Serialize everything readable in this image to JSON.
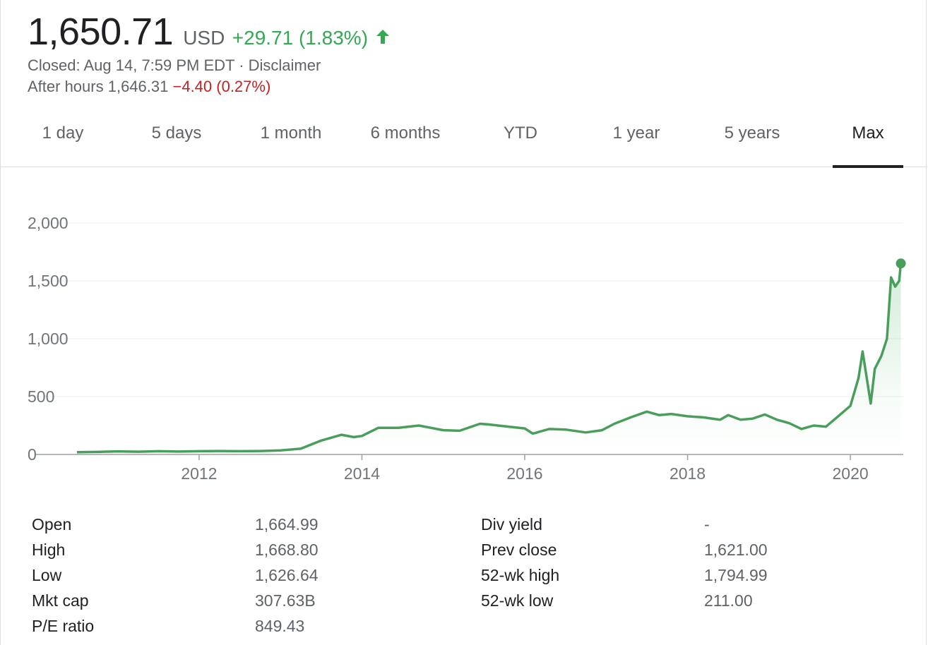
{
  "quote": {
    "price": "1,650.71",
    "currency": "USD",
    "change": "+29.71 (1.83%)",
    "direction": "up",
    "status_prefix": "Closed: Aug 14, 7:59 PM EDT · ",
    "disclaimer_link": "Disclaimer",
    "after_hours_label": "After hours 1,646.31",
    "after_hours_change": "−4.40 (0.27%)"
  },
  "colors": {
    "positive": "#34a853",
    "negative": "#c5221f",
    "line": "#4a9e5c"
  },
  "tabs": [
    {
      "label": "1 day",
      "active": false
    },
    {
      "label": "5 days",
      "active": false
    },
    {
      "label": "1 month",
      "active": false
    },
    {
      "label": "6 months",
      "active": false
    },
    {
      "label": "YTD",
      "active": false
    },
    {
      "label": "1 year",
      "active": false
    },
    {
      "label": "5 years",
      "active": false
    },
    {
      "label": "Max",
      "active": true
    }
  ],
  "chart_data": {
    "type": "line",
    "title": "",
    "xlabel": "",
    "ylabel": "",
    "x_ticks": [
      "2012",
      "2014",
      "2016",
      "2018",
      "2020"
    ],
    "y_ticks": [
      "0",
      "500",
      "1,000",
      "1,500",
      "2,000"
    ],
    "ylim": [
      0,
      2000
    ],
    "xlim": [
      2010.5,
      2020.65
    ],
    "grid": true,
    "fill_under": true,
    "end_marker": true,
    "series": [
      {
        "x": [
          2010.5,
          2010.75,
          2011.0,
          2011.25,
          2011.5,
          2011.75,
          2012.0,
          2012.25,
          2012.5,
          2012.75,
          2013.0,
          2013.25,
          2013.5,
          2013.75,
          2013.9,
          2014.0,
          2014.2,
          2014.45,
          2014.7,
          2014.85,
          2015.0,
          2015.2,
          2015.45,
          2015.55,
          2015.8,
          2016.0,
          2016.1,
          2016.3,
          2016.5,
          2016.75,
          2016.95,
          2017.1,
          2017.3,
          2017.5,
          2017.65,
          2017.8,
          2018.0,
          2018.2,
          2018.4,
          2018.5,
          2018.65,
          2018.8,
          2018.95,
          2019.1,
          2019.25,
          2019.4,
          2019.55,
          2019.7,
          2019.85,
          2020.0,
          2020.1,
          2020.15,
          2020.25,
          2020.3,
          2020.38,
          2020.45,
          2020.5,
          2020.55,
          2020.6,
          2020.62
        ],
        "y": [
          20,
          22,
          27,
          24,
          28,
          25,
          28,
          30,
          28,
          30,
          35,
          50,
          120,
          170,
          150,
          160,
          230,
          230,
          250,
          230,
          210,
          205,
          265,
          260,
          240,
          225,
          180,
          220,
          215,
          190,
          210,
          265,
          320,
          370,
          340,
          350,
          330,
          320,
          300,
          340,
          300,
          310,
          345,
          300,
          270,
          220,
          250,
          240,
          330,
          420,
          660,
          890,
          440,
          740,
          850,
          1000,
          1530,
          1450,
          1500,
          1650.71
        ]
      }
    ]
  },
  "stats": {
    "left": [
      {
        "label": "Open",
        "value": "1,664.99"
      },
      {
        "label": "High",
        "value": "1,668.80"
      },
      {
        "label": "Low",
        "value": "1,626.64"
      },
      {
        "label": "Mkt cap",
        "value": "307.63B"
      },
      {
        "label": "P/E ratio",
        "value": "849.43"
      }
    ],
    "right": [
      {
        "label": "Div yield",
        "value": "-"
      },
      {
        "label": "Prev close",
        "value": "1,621.00"
      },
      {
        "label": "52-wk high",
        "value": "1,794.99"
      },
      {
        "label": "52-wk low",
        "value": "211.00"
      }
    ]
  }
}
